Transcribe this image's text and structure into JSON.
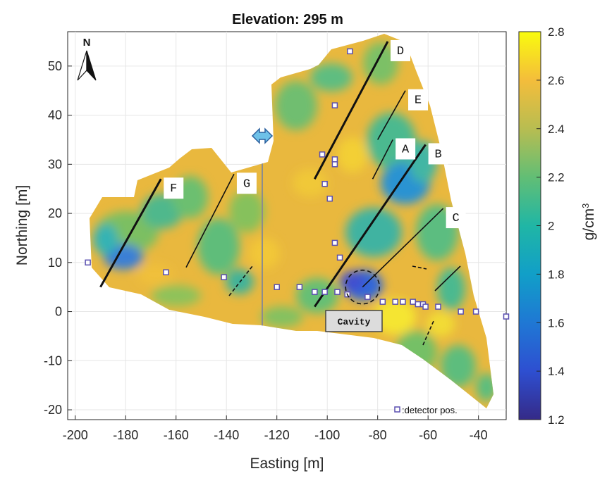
{
  "title": "Elevation: 295 m",
  "axes": {
    "xlabel": "Easting [m]",
    "ylabel": "Northing [m]",
    "xlim": [
      -203,
      -29
    ],
    "ylim": [
      -22,
      57
    ],
    "xticks": [
      "-200",
      "-180",
      "-160",
      "-140",
      "-120",
      "-100",
      "-80",
      "-60",
      "-40"
    ],
    "yticks": [
      "-20",
      "-10",
      "0",
      "10",
      "20",
      "30",
      "40",
      "50"
    ],
    "grid": true
  },
  "colorbar": {
    "label": "g/cm",
    "label_sup": "3",
    "min": 1.2,
    "max": 2.8,
    "ticks": [
      "1.2",
      "1.4",
      "1.6",
      "1.8",
      "2",
      "2.2",
      "2.4",
      "2.6",
      "2.8"
    ],
    "colormap": "parula"
  },
  "north_arrow": {
    "label": "N"
  },
  "legend": {
    "text": ":detector pos.",
    "marker_color": "#5a4fb0"
  },
  "cavity_label": "Cavity",
  "map_data": {
    "faults": [
      {
        "label": "D",
        "start": [
          -105,
          27
        ],
        "end": [
          -76,
          55
        ]
      },
      {
        "label": "E",
        "start": [
          -80,
          35
        ],
        "end": [
          -69,
          45
        ]
      },
      {
        "label": "A",
        "start": [
          -82,
          27
        ],
        "end": [
          -74,
          35
        ]
      },
      {
        "label": "B",
        "start": [
          -105,
          1
        ],
        "end": [
          -61,
          34
        ]
      },
      {
        "label": "C",
        "start": [
          -86,
          5
        ],
        "end": [
          -54,
          21
        ]
      },
      {
        "label": "F",
        "start": [
          -190,
          5
        ],
        "end": [
          -166,
          27
        ]
      },
      {
        "label": "G",
        "start": [
          -156,
          9
        ],
        "end": [
          -137,
          28
        ]
      }
    ],
    "fault_labels": [
      "D",
      "E",
      "A",
      "B",
      "C",
      "F",
      "G"
    ],
    "cavity_center": [
      -86,
      5
    ],
    "detectors": [
      [
        -195,
        10
      ],
      [
        -164,
        8
      ],
      [
        -141,
        7
      ],
      [
        -120,
        5
      ],
      [
        -111,
        5
      ],
      [
        -105,
        4
      ],
      [
        -101,
        4
      ],
      [
        -96,
        4
      ],
      [
        -92,
        3.5
      ],
      [
        -84,
        3
      ],
      [
        -78,
        2
      ],
      [
        -73,
        2
      ],
      [
        -70,
        2
      ],
      [
        -66,
        2
      ],
      [
        -64,
        1.5
      ],
      [
        -62,
        1.5
      ],
      [
        -61,
        1
      ],
      [
        -56,
        1
      ],
      [
        -47,
        0
      ],
      [
        -41,
        0
      ],
      [
        -29,
        -1
      ],
      [
        -91,
        53
      ],
      [
        -97,
        42
      ],
      [
        -102,
        32
      ],
      [
        -97,
        31
      ],
      [
        -97,
        30
      ],
      [
        -101,
        26
      ],
      [
        -99,
        23
      ],
      [
        -97,
        14
      ],
      [
        -95,
        11
      ]
    ]
  }
}
